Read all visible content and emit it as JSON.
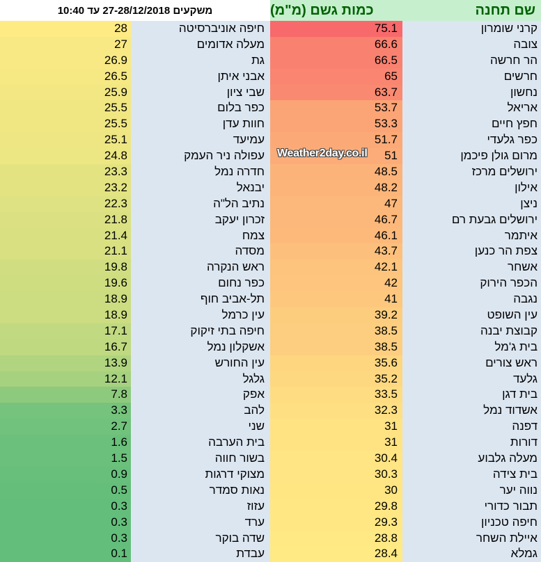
{
  "header": {
    "left_title": "משקעים 27-28/12/2018 עד 10:40",
    "rain_col": "כמות גשם (מ\"מ)",
    "name_col": "שם תחנה"
  },
  "watermark": "Weather2day.co.il",
  "color_scale": {
    "high": "#f8696b",
    "mid": "#ffeb84",
    "low": "#63be7b",
    "mid_value": 28.2,
    "max_value": 75.1,
    "min_value": 0.1
  },
  "right_table": [
    {
      "name": "קרני שומרון",
      "value": "75.1"
    },
    {
      "name": "צובה",
      "value": "66.6"
    },
    {
      "name": "הר חרשה",
      "value": "66.5"
    },
    {
      "name": "חרשים",
      "value": "65"
    },
    {
      "name": "נחשון",
      "value": "63.7"
    },
    {
      "name": "אריאל",
      "value": "53.7"
    },
    {
      "name": "חפץ חיים",
      "value": "53.3"
    },
    {
      "name": "כפר גלעדי",
      "value": "51.7"
    },
    {
      "name": "מרום גולן פיכמן",
      "value": "51"
    },
    {
      "name": "ירושלים מרכז",
      "value": "48.5"
    },
    {
      "name": "אילון",
      "value": "48.2"
    },
    {
      "name": "ניצן",
      "value": "47"
    },
    {
      "name": "ירושלים גבעת רם",
      "value": "46.7"
    },
    {
      "name": "איתמר",
      "value": "46.1"
    },
    {
      "name": "צפת הר כנען",
      "value": "43.7"
    },
    {
      "name": "אשחר",
      "value": "42.1"
    },
    {
      "name": "הכפר הירוק",
      "value": "42"
    },
    {
      "name": "נגבה",
      "value": "41"
    },
    {
      "name": "עין השופט",
      "value": "39.2"
    },
    {
      "name": "קבוצת יבנה",
      "value": "38.5"
    },
    {
      "name": "בית ג'מל",
      "value": "38.5"
    },
    {
      "name": "ראש צורים",
      "value": "35.6"
    },
    {
      "name": "גלעד",
      "value": "35.2"
    },
    {
      "name": "בית דגן",
      "value": "33.5"
    },
    {
      "name": "אשדוד נמל",
      "value": "32.3"
    },
    {
      "name": "דפנה",
      "value": "31"
    },
    {
      "name": "דורות",
      "value": "31"
    },
    {
      "name": "מעלה גלבוע",
      "value": "30.4"
    },
    {
      "name": "בית צידה",
      "value": "30.3"
    },
    {
      "name": "נווה יער",
      "value": "30"
    },
    {
      "name": "תבור כדורי",
      "value": "29.8"
    },
    {
      "name": "חיפה טכניון",
      "value": "29.3"
    },
    {
      "name": "איילת השחר",
      "value": "28.8"
    },
    {
      "name": "גמלא",
      "value": "28.4"
    }
  ],
  "left_table": [
    {
      "name": "חיפה אוניברסיטה",
      "value": "28"
    },
    {
      "name": "מעלה אדומים",
      "value": "27"
    },
    {
      "name": "גת",
      "value": "26.9"
    },
    {
      "name": "אבני איתן",
      "value": "26.5"
    },
    {
      "name": "שבי ציון",
      "value": "25.9"
    },
    {
      "name": "כפר בלום",
      "value": "25.5"
    },
    {
      "name": "חוות עדן",
      "value": "25.5"
    },
    {
      "name": "עמיעד",
      "value": "25.1"
    },
    {
      "name": "עפולה ניר העמק",
      "value": "24.8"
    },
    {
      "name": "חדרה נמל",
      "value": "23.3"
    },
    {
      "name": "יבנאל",
      "value": "23.2"
    },
    {
      "name": "נתיב הל\"ה",
      "value": "22.3"
    },
    {
      "name": "זכרון יעקב",
      "value": "21.8"
    },
    {
      "name": "צמח",
      "value": "21.4"
    },
    {
      "name": "מסדה",
      "value": "21.1"
    },
    {
      "name": "ראש הנקרה",
      "value": "19.8"
    },
    {
      "name": "כפר נחום",
      "value": "19.6"
    },
    {
      "name": "תל-אביב חוף",
      "value": "18.9"
    },
    {
      "name": "עין כרמל",
      "value": "18.9"
    },
    {
      "name": "חיפה בתי זיקוק",
      "value": "17.1"
    },
    {
      "name": "אשקלון נמל",
      "value": "16.7"
    },
    {
      "name": "עין החורש",
      "value": "13.9"
    },
    {
      "name": "גלגל",
      "value": "12.1"
    },
    {
      "name": "אפק",
      "value": "7.8"
    },
    {
      "name": "להב",
      "value": "3.3"
    },
    {
      "name": "שני",
      "value": "2.7"
    },
    {
      "name": "בית הערבה",
      "value": "1.6"
    },
    {
      "name": "בשור חווה",
      "value": "1.5"
    },
    {
      "name": "מצוקי דרגות",
      "value": "0.9"
    },
    {
      "name": "נאות סמדר",
      "value": "0.5"
    },
    {
      "name": "עזוז",
      "value": "0.3"
    },
    {
      "name": "ערד",
      "value": "0.3"
    },
    {
      "name": "שדה בוקר",
      "value": "0.3"
    },
    {
      "name": "עבדת",
      "value": "0.1"
    }
  ]
}
